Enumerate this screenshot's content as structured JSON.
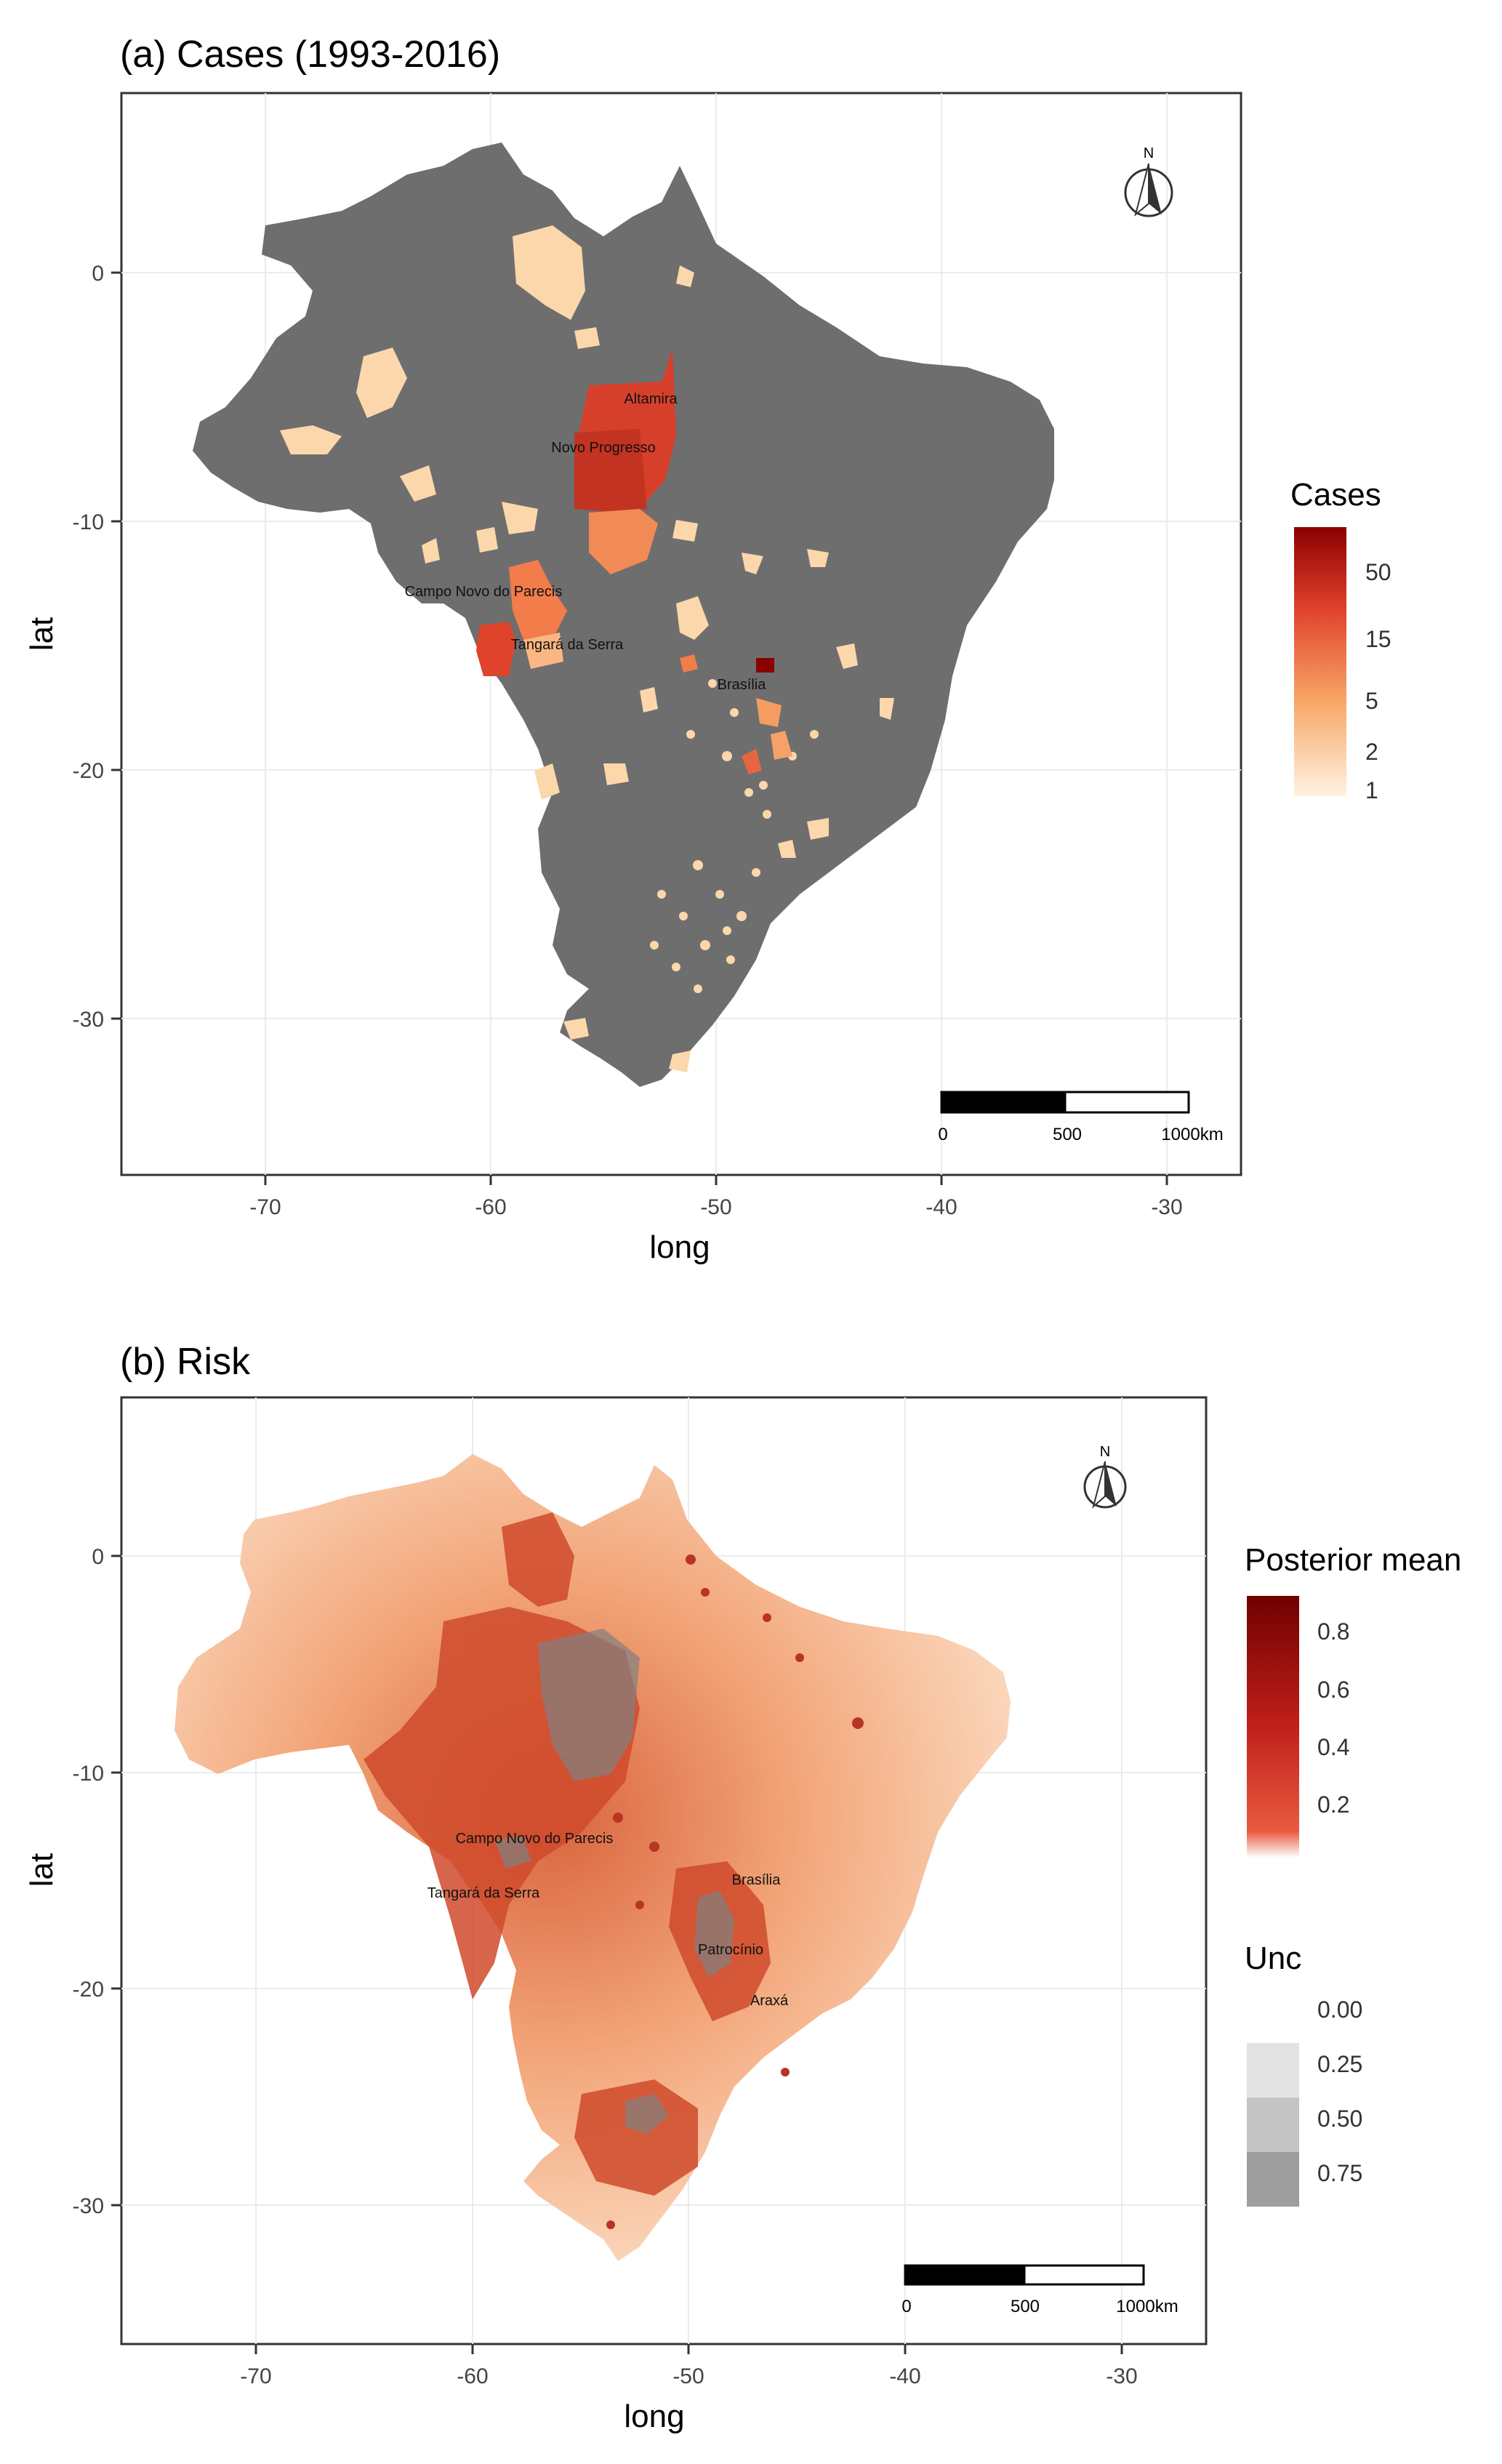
{
  "panels": {
    "a": {
      "title": "(a) Cases (1993-2016)",
      "xlabel": "long",
      "ylabel": "lat",
      "x_ticks": [
        "-70",
        "-60",
        "-50",
        "-40",
        "-30"
      ],
      "y_ticks": [
        "0",
        "-10",
        "-20",
        "-30"
      ],
      "north": "N",
      "scale_labels": [
        "0",
        "500",
        "1000km"
      ],
      "places": [
        "Altamira",
        "Novo Progresso",
        "Campo Novo do Parecis",
        "Tangará da Serra",
        "Brasília"
      ],
      "legend": {
        "title": "Cases",
        "labels": [
          "50",
          "15",
          "5",
          "2",
          "1"
        ]
      }
    },
    "b": {
      "title": "(b) Risk",
      "xlabel": "long",
      "ylabel": "lat",
      "x_ticks": [
        "-70",
        "-60",
        "-50",
        "-40",
        "-30"
      ],
      "y_ticks": [
        "0",
        "-10",
        "-20",
        "-30"
      ],
      "north": "N",
      "scale_labels": [
        "0",
        "500",
        "1000km"
      ],
      "places": [
        "Campo Novo do Parecis",
        "Tangará da Serra",
        "Brasília",
        "Patrocínio",
        "Araxá"
      ],
      "legend_mean": {
        "title": "Posterior mean",
        "labels": [
          "0.8",
          "0.6",
          "0.4",
          "0.2"
        ]
      },
      "legend_unc": {
        "title": "Unc",
        "labels": [
          "0.00",
          "0.25",
          "0.50",
          "0.75"
        ]
      }
    }
  },
  "colors": {
    "no_case_fill": "#6e6e6e",
    "case_low": "#fde8cf",
    "case_high": "#8b0000",
    "risk_low": "#fdeee0",
    "risk_high": "#c0301f",
    "unc_overlay": "#7a7a7a"
  }
}
